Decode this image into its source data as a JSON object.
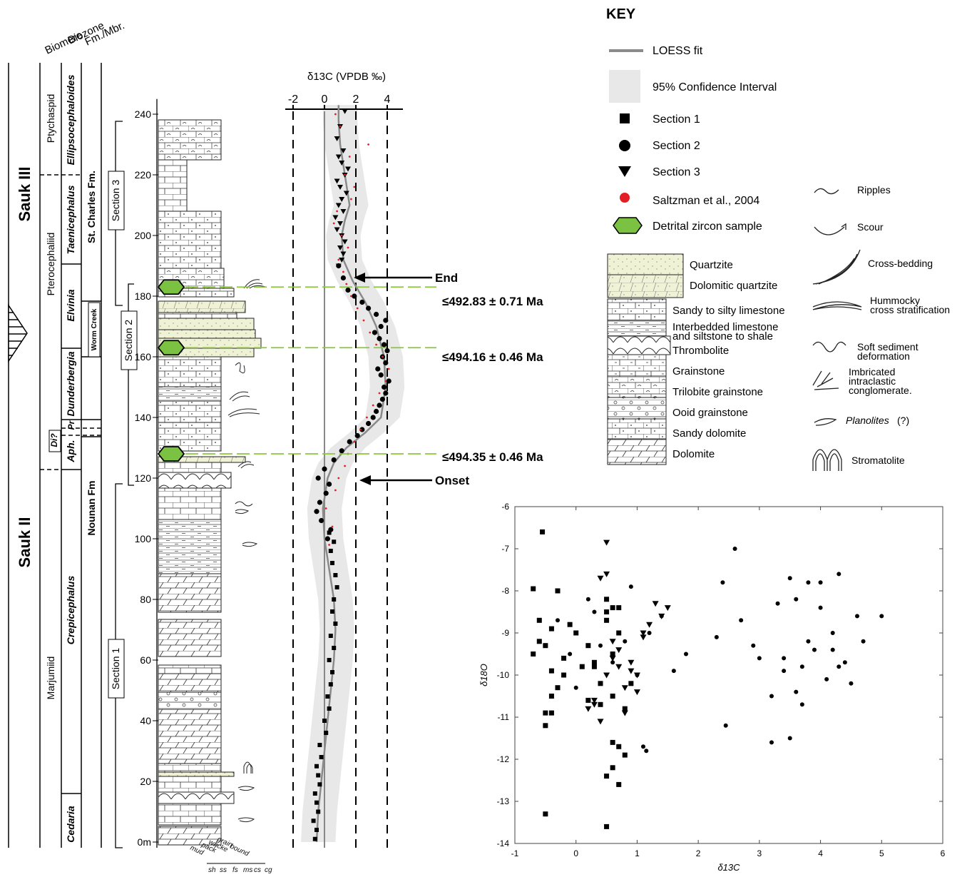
{
  "column_headers": {
    "biomere": "Biomere",
    "biozone": "Biozone",
    "formation": "Fm./Mbr."
  },
  "sequences": {
    "upper": "Sauk III",
    "lower": "Sauk II"
  },
  "biomeres": [
    "Ptychaspid",
    "Pterocephaliid",
    "Marjumiid"
  ],
  "biozones": [
    "Ellipsocephaloides",
    "Taenicephalus",
    "Elvinia",
    "Dunderbergia",
    "Pr",
    "Di?",
    "Aph.",
    "Crepicephalus",
    "Cedaria"
  ],
  "formations": {
    "st_charles": "St. Charles Fm.",
    "worm_creek": "Worm Creek",
    "nounan": "Nounan Fm"
  },
  "sections": [
    "Section 1",
    "Section 2",
    "Section 3"
  ],
  "texture_labels": {
    "top": [
      "mud",
      "pack",
      "wacke",
      "grain",
      "bound"
    ],
    "bottom": [
      "sh",
      "ss",
      "fs",
      "ms",
      "cs",
      "cg"
    ]
  },
  "zircon_ages": [
    "≤492.83 ± 0.71 Ma",
    "≤494.16 ± 0.46 Ma",
    "≤494.35 ± 0.46 Ma"
  ],
  "markers": {
    "end": "End",
    "onset": "Onset"
  },
  "key": {
    "title": "KEY",
    "symbols": [
      {
        "label": "LOESS fit",
        "icon": "line-icon"
      },
      {
        "label": "95% Confidence Interval",
        "icon": "band-icon"
      },
      {
        "label": "Section 1",
        "icon": "square-icon"
      },
      {
        "label": "Section 2",
        "icon": "circle-icon"
      },
      {
        "label": "Section 3",
        "icon": "triangle-icon"
      },
      {
        "label": "Saltzman et al., 2004",
        "icon": "red-dot-icon"
      },
      {
        "label": "Detrital zircon sample",
        "icon": "hexagon-icon"
      }
    ],
    "lithologies": [
      "Quartzite",
      "Dolomitic quartzite",
      "Sandy to silty limestone",
      "Interbedded limestone",
      "and siltstone to shale",
      "Thrombolite",
      "Grainstone",
      "Trilobite grainstone",
      "Ooid grainstone",
      "Sandy dolomite",
      "Dolomite"
    ],
    "structures": [
      "Ripples",
      "Scour",
      "Cross-bedding",
      "Hummocky",
      "cross stratification",
      "Soft sediment",
      "deformation",
      "Imbricated",
      "intraclastic",
      "conglomerate.",
      "Planolites",
      "(?)",
      "Stromatolite"
    ]
  },
  "colors": {
    "quartzite": "#f0f2d6",
    "zircon_fill": "#7bc142",
    "zircon_dash": "#8cc63f",
    "saltzman": "#e31e24",
    "ci_band": "#e8e8e8",
    "loess": "#8a8a8a"
  },
  "chart_data": [
    {
      "type": "line",
      "title": "δ13C (VPDB ‰)",
      "xlabel": "δ13C (VPDB ‰)",
      "ylabel": "",
      "x_ticks": [
        -2,
        0,
        2,
        4
      ],
      "y_ticks": [
        0,
        20,
        40,
        60,
        80,
        100,
        120,
        140,
        160,
        180,
        200,
        220,
        240
      ],
      "y_tick_suffix": "m",
      "xlim": [
        -2.5,
        5
      ],
      "ylim": [
        0,
        245
      ],
      "series": [
        {
          "name": "LOESS fit",
          "x": [
            -0.5,
            -0.4,
            -0.2,
            0.0,
            0.2,
            0.4,
            0.6,
            0.7,
            0.6,
            0.3,
            0.0,
            -0.1,
            0.2,
            0.6,
            1.4,
            2.6,
            3.6,
            3.9,
            3.8,
            3.3,
            2.6,
            1.8,
            1.2,
            1.1,
            1.3,
            1.6,
            1.3,
            1.0,
            0.9,
            0.9
          ],
          "y": [
            0,
            10,
            20,
            30,
            40,
            50,
            60,
            70,
            80,
            90,
            100,
            110,
            120,
            125,
            130,
            135,
            140,
            150,
            160,
            170,
            178,
            185,
            192,
            200,
            205,
            210,
            220,
            230,
            238,
            243
          ]
        },
        {
          "name": "Section 1",
          "x": [
            -0.6,
            -0.5,
            -0.7,
            -0.4,
            -0.5,
            -0.6,
            -0.3,
            -0.4,
            -0.5,
            -0.2,
            -0.3,
            0.1,
            0.0,
            0.3,
            0.2,
            0.4,
            0.5,
            0.3,
            0.6,
            0.4,
            0.7,
            0.5,
            0.6,
            0.8,
            0.7,
            0.5,
            0.4,
            0.6,
            0.3
          ],
          "y": [
            1,
            4,
            7,
            10,
            13,
            16,
            19,
            22,
            25,
            28,
            32,
            36,
            40,
            44,
            48,
            52,
            56,
            60,
            64,
            68,
            72,
            76,
            80,
            84,
            88,
            92,
            96,
            99,
            102
          ]
        },
        {
          "name": "Section 2",
          "x": [
            0.2,
            0.4,
            -0.2,
            -0.5,
            -0.3,
            0.1,
            0.3,
            -0.4,
            0.0,
            0.6,
            1.1,
            1.6,
            2.1,
            2.4,
            2.8,
            3.1,
            3.3,
            3.5,
            3.7,
            3.9,
            3.8,
            4.1,
            3.6,
            3.4,
            3.9,
            3.7,
            4.0,
            3.8,
            3.5,
            3.2,
            3.6,
            3.9,
            3.3,
            2.8,
            2.4,
            1.9,
            1.5,
            1.2,
            0.9
          ],
          "y": [
            100,
            103,
            106,
            109,
            112,
            115,
            118,
            120,
            123,
            126,
            129,
            132,
            134,
            136,
            138,
            140,
            142,
            144,
            146,
            148,
            150,
            152,
            154,
            156,
            158,
            160,
            162,
            164,
            166,
            168,
            170,
            172,
            174,
            176,
            178,
            180,
            182,
            186,
            190
          ]
        },
        {
          "name": "Section 3",
          "x": [
            0.9,
            1.1,
            1.2,
            1.0,
            1.3,
            1.1,
            0.8,
            1.0,
            0.7,
            1.2,
            0.9,
            1.1,
            1.4,
            1.0,
            0.8,
            1.3,
            1.5,
            1.1,
            0.9,
            1.2,
            0.8,
            1.0,
            1.3
          ],
          "y": [
            190,
            192,
            194,
            196,
            198,
            200,
            202,
            204,
            206,
            208,
            210,
            212,
            214,
            216,
            218,
            220,
            222,
            224,
            226,
            228,
            232,
            236,
            241
          ]
        },
        {
          "name": "Saltzman et al., 2004",
          "x": [
            0.3,
            0.5,
            0.1,
            0.7,
            0.9,
            1.3,
            1.5,
            1.9,
            2.3,
            2.7,
            3.1,
            3.5,
            3.9,
            4.1,
            3.7,
            3.3,
            2.9,
            2.5,
            2.1,
            1.7,
            1.4,
            1.2,
            0.9,
            1.5,
            1.1,
            0.6,
            0.8,
            1.7,
            1.9,
            1.3,
            1.6,
            2.8,
            1.0,
            0.7
          ],
          "y": [
            98,
            104,
            110,
            116,
            120,
            124,
            128,
            132,
            136,
            140,
            144,
            148,
            152,
            156,
            160,
            164,
            168,
            172,
            176,
            180,
            184,
            188,
            192,
            196,
            200,
            204,
            208,
            212,
            216,
            220,
            226,
            230,
            236,
            240
          ]
        }
      ],
      "zircon_heights": [
        183,
        163,
        128
      ]
    },
    {
      "type": "scatter",
      "title": "",
      "xlabel": "δ13C",
      "ylabel": "δ18O",
      "xlim": [
        -1,
        6
      ],
      "ylim": [
        -14,
        -6
      ],
      "x_ticks": [
        -1,
        0,
        1,
        2,
        3,
        4,
        5,
        6
      ],
      "y_ticks": [
        -14,
        -13,
        -12,
        -11,
        -10,
        -9,
        -8,
        -7,
        -6
      ],
      "series": [
        {
          "name": "Section 1",
          "marker": "square",
          "x": [
            -0.7,
            -0.6,
            -0.5,
            -0.4,
            -0.5,
            -0.3,
            -0.2,
            -0.6,
            -0.7,
            -0.4,
            -0.3,
            -0.1,
            0.0,
            0.2,
            0.3,
            0.4,
            0.5,
            0.6,
            0.7,
            0.6,
            0.8,
            0.7,
            0.5,
            0.6,
            0.7,
            0.8,
            0.9,
            0.6,
            0.7,
            0.5,
            -0.5,
            -0.4,
            -0.5,
            0.5,
            0.6,
            0.4,
            0.3,
            0.2,
            0.1,
            -0.2,
            -0.4,
            0.5,
            -0.55
          ],
          "y": [
            -7.95,
            -8.7,
            -9.3,
            -9.9,
            -10.9,
            -10.3,
            -9.6,
            -9.2,
            -9.5,
            -8.9,
            -8.0,
            -8.8,
            -9.0,
            -10.6,
            -9.8,
            -10.2,
            -8.5,
            -8.4,
            -8.4,
            -11.6,
            -11.9,
            -11.7,
            -12.4,
            -12.2,
            -12.6,
            -10.8,
            -10.2,
            -9.5,
            -9.0,
            -8.7,
            -11.2,
            -10.9,
            -13.3,
            -13.6,
            -10.5,
            -10.7,
            -9.7,
            -9.3,
            -9.8,
            -10.0,
            -10.5,
            -8.2,
            -6.6
          ]
        },
        {
          "name": "Section 2",
          "marker": "circle",
          "x": [
            -0.3,
            -0.1,
            0.1,
            0.2,
            0.4,
            0.6,
            0.8,
            1.0,
            1.2,
            1.4,
            1.6,
            1.8,
            2.3,
            2.4,
            2.45,
            2.6,
            2.7,
            2.9,
            3.0,
            3.2,
            3.3,
            3.4,
            3.5,
            3.6,
            3.7,
            3.8,
            3.9,
            4.0,
            4.1,
            4.2,
            4.3,
            4.4,
            4.5,
            4.6,
            4.7,
            5.0,
            3.5,
            3.6,
            3.2,
            3.4,
            4.0,
            4.2,
            3.8,
            3.7,
            4.3,
            1.1,
            1.15,
            0.9,
            0.3,
            0.0
          ],
          "y": [
            -8.7,
            -9.5,
            -9.8,
            -8.2,
            -9.3,
            -9.7,
            -9.2,
            -10.0,
            -9.0,
            -8.6,
            -9.9,
            -9.5,
            -9.1,
            -7.8,
            -11.2,
            -7.0,
            -8.7,
            -9.3,
            -9.6,
            -10.5,
            -8.3,
            -9.9,
            -7.7,
            -8.2,
            -9.8,
            -7.8,
            -9.4,
            -8.4,
            -10.1,
            -9.0,
            -7.6,
            -9.7,
            -10.2,
            -8.6,
            -9.2,
            -8.6,
            -11.5,
            -10.4,
            -11.6,
            -9.6,
            -7.8,
            -9.4,
            -9.2,
            -10.7,
            -9.8,
            -11.7,
            -11.8,
            -7.9,
            -8.5,
            -10.3
          ]
        },
        {
          "name": "Section 3",
          "marker": "triangle",
          "x": [
            0.4,
            0.5,
            0.5,
            0.6,
            0.7,
            0.8,
            0.9,
            1.0,
            1.1,
            1.2,
            1.3,
            1.4,
            1.5,
            0.3,
            0.4,
            0.6,
            0.9,
            1.0,
            1.1,
            0.5,
            0.3,
            0.2,
            0.8,
            0.7
          ],
          "y": [
            -7.7,
            -7.6,
            -6.85,
            -9.6,
            -9.8,
            -10.3,
            -9.7,
            -10.0,
            -9.1,
            -8.8,
            -8.3,
            -8.6,
            -8.4,
            -10.7,
            -11.1,
            -9.2,
            -9.9,
            -10.4,
            -9.0,
            -10.0,
            -10.6,
            -10.8,
            -10.9,
            -9.4
          ]
        }
      ]
    }
  ]
}
